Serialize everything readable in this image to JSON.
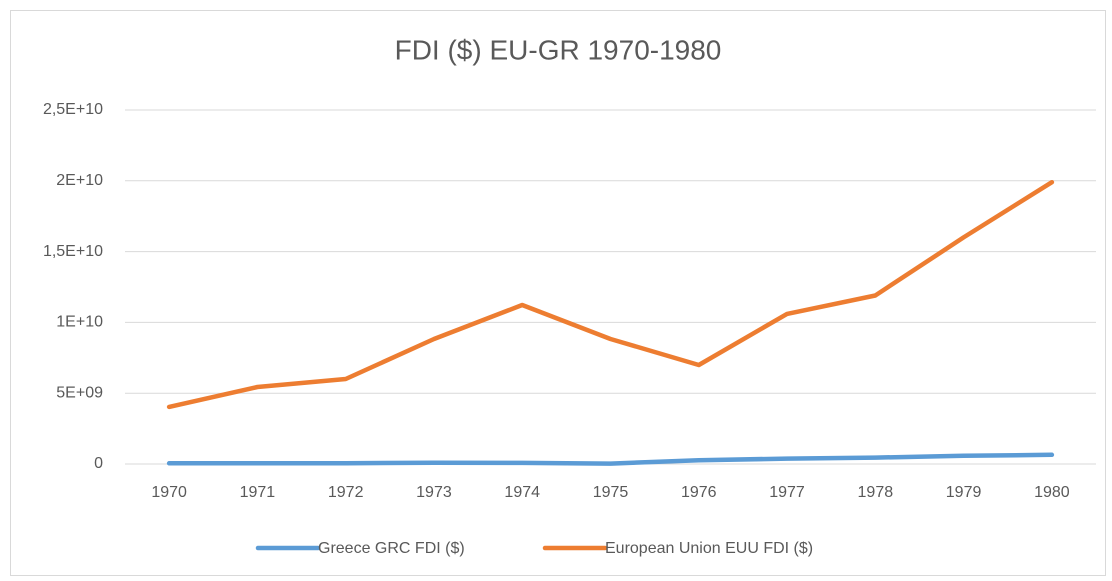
{
  "chart_data": {
    "type": "line",
    "title": "FDI ($) EU-GR 1970-1980",
    "categories": [
      "1970",
      "1971",
      "1972",
      "1973",
      "1974",
      "1975",
      "1976",
      "1977",
      "1978",
      "1979",
      "1980"
    ],
    "series": [
      {
        "name": "Greece GRC FDI ($)",
        "color": "#5b9bd5",
        "values": [
          50000000,
          60000000,
          60000000,
          90000000,
          80000000,
          30000000,
          260000000,
          380000000,
          450000000,
          580000000,
          650000000
        ]
      },
      {
        "name": "European Union EUU FDI ($)",
        "color": "#ed7d31",
        "values": [
          4030000000,
          5440000000,
          6000000000,
          8830000000,
          11230000000,
          8830000000,
          6990000000,
          10600000000,
          11900000000,
          16000000000,
          19900000000
        ]
      }
    ],
    "ylim": [
      0,
      25000000000
    ],
    "yticks": [
      0,
      {
        "value": 5000000000,
        "label": "5E+09"
      },
      {
        "value": 10000000000,
        "label": "1E+10"
      },
      {
        "value": 15000000000,
        "label": "1,5E+10"
      },
      {
        "value": 20000000000,
        "label": "2E+10"
      },
      {
        "value": 25000000000,
        "label": "2,5E+10"
      }
    ],
    "grid": true,
    "legend": "bottom"
  }
}
